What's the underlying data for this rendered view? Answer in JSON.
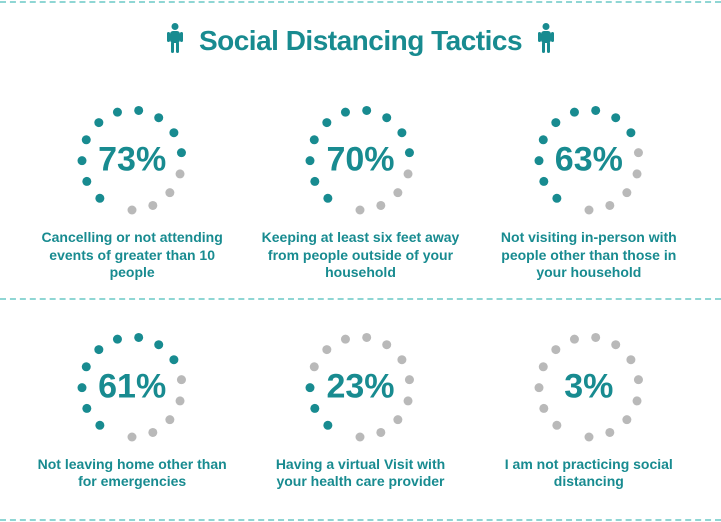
{
  "colors": {
    "teal": "#188B90",
    "grey": "#B9B9B9",
    "border": "#8FD6D4",
    "text": "#188B90",
    "bg": "#ffffff"
  },
  "title": {
    "text": "Social Distancing Tactics",
    "fontsize": 28,
    "iconColor": "#188B90"
  },
  "dial": {
    "dotCount": 14,
    "dotRadius": 4.5,
    "ringRadius": 50,
    "startAngleDeg": 130,
    "sweepDeg": 320,
    "valueFontsize": 34,
    "labelFontsize": 14
  },
  "items": [
    {
      "value": 73,
      "display": "73%",
      "label": "Cancelling or not attending events of greater than 10 people"
    },
    {
      "value": 70,
      "display": "70%",
      "label": "Keeping at least six feet away from people outside of your household"
    },
    {
      "value": 63,
      "display": "63%",
      "label": "Not visiting in-person with people other than those in your household"
    },
    {
      "value": 61,
      "display": "61%",
      "label": "Not leaving home other than for emergencies"
    },
    {
      "value": 23,
      "display": "23%",
      "label": "Having a virtual Visit with your health care provider"
    },
    {
      "value": 3,
      "display": "3%",
      "label": "I am not practicing social distancing"
    }
  ],
  "layout": {
    "columns": 3
  }
}
